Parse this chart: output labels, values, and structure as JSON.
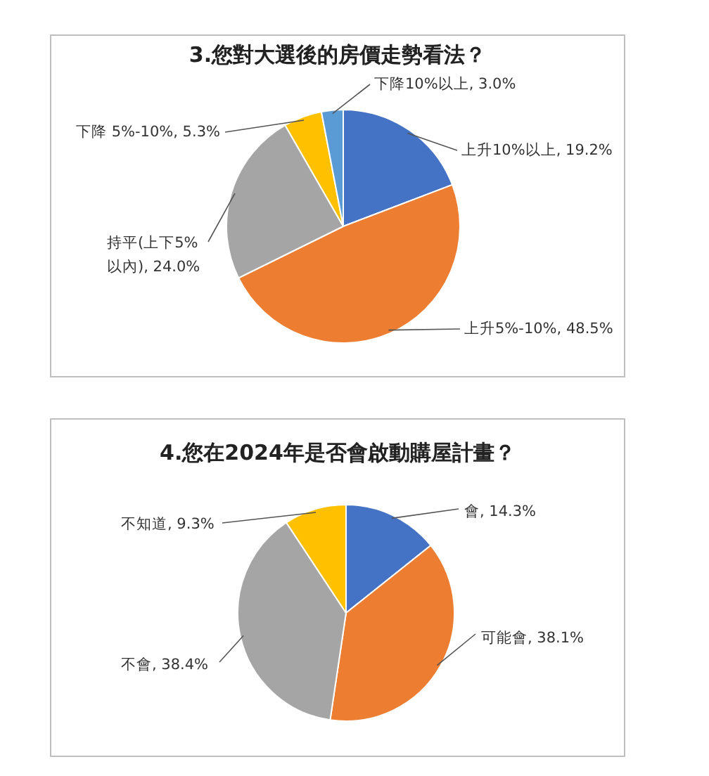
{
  "chart_data": [
    {
      "type": "pie",
      "title": "3.您對大選後的房價走勢看法？",
      "categories": [
        "上升10%以上",
        "上升5%-10%",
        "持平(上下5%以內)",
        "下降 5%-10%",
        "下降10%以上"
      ],
      "values": [
        19.2,
        48.5,
        24.0,
        5.3,
        3.0
      ],
      "value_labels": [
        "19.2%",
        "48.5%",
        "24.0%",
        "5.3%",
        "3.0%"
      ],
      "colors": [
        "#4472c4",
        "#ed7d31",
        "#a5a5a5",
        "#ffc000",
        "#5b9bd5"
      ]
    },
    {
      "type": "pie",
      "title": "4.您在2024年是否會啟動購屋計畫？",
      "categories": [
        "會",
        "可能會",
        "不會",
        "不知道"
      ],
      "values": [
        14.3,
        38.1,
        38.4,
        9.3
      ],
      "value_labels": [
        "14.3%",
        "38.1%",
        "38.4%",
        "9.3%"
      ],
      "colors": [
        "#4472c4",
        "#ed7d31",
        "#a5a5a5",
        "#ffc000"
      ]
    }
  ]
}
